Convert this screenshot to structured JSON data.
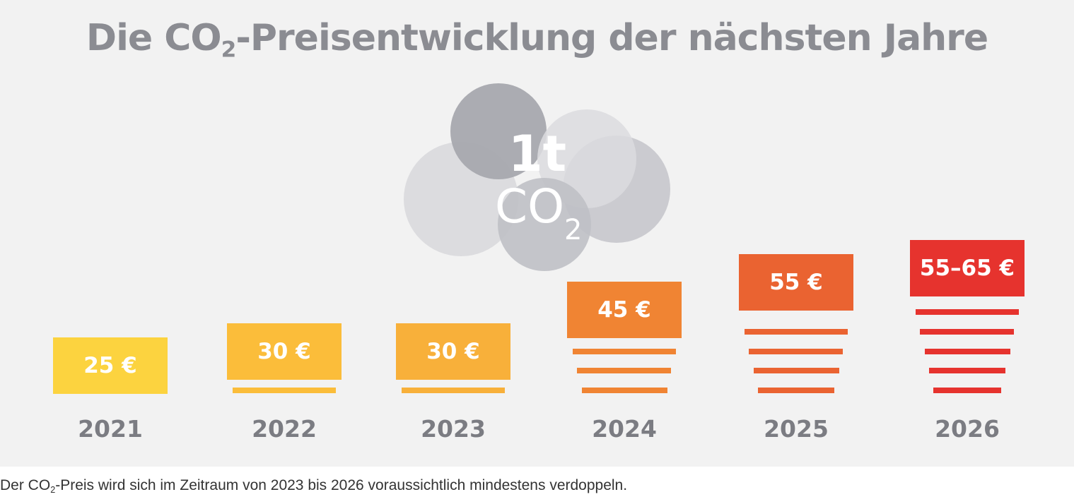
{
  "title": {
    "pre": "Die CO",
    "sub": "2",
    "post": "-Preisentwicklung der nächsten Jahre"
  },
  "cloud": {
    "line1": "1t",
    "line2": "CO",
    "sub": "2"
  },
  "caption": {
    "pre": "Der CO",
    "sub": "2",
    "post": "-Preis wird sich im Zeitraum von 2023 bis 2026 voraussichtlich mindestens verdoppeln."
  },
  "chart_data": {
    "type": "bar",
    "title": "Die CO2-Preisentwicklung der nächsten Jahre",
    "categories": [
      "2021",
      "2022",
      "2023",
      "2024",
      "2025",
      "2026"
    ],
    "values": [
      25,
      30,
      30,
      45,
      55,
      60
    ],
    "value_labels": [
      "25 €",
      "30 €",
      "30 €",
      "45 €",
      "55 €",
      "55–65 €"
    ],
    "unit": "€ per 1t CO2",
    "colors": [
      "#fcd33f",
      "#fbbd3a",
      "#f8b03a",
      "#f08433",
      "#ea6331",
      "#e6332e"
    ]
  }
}
